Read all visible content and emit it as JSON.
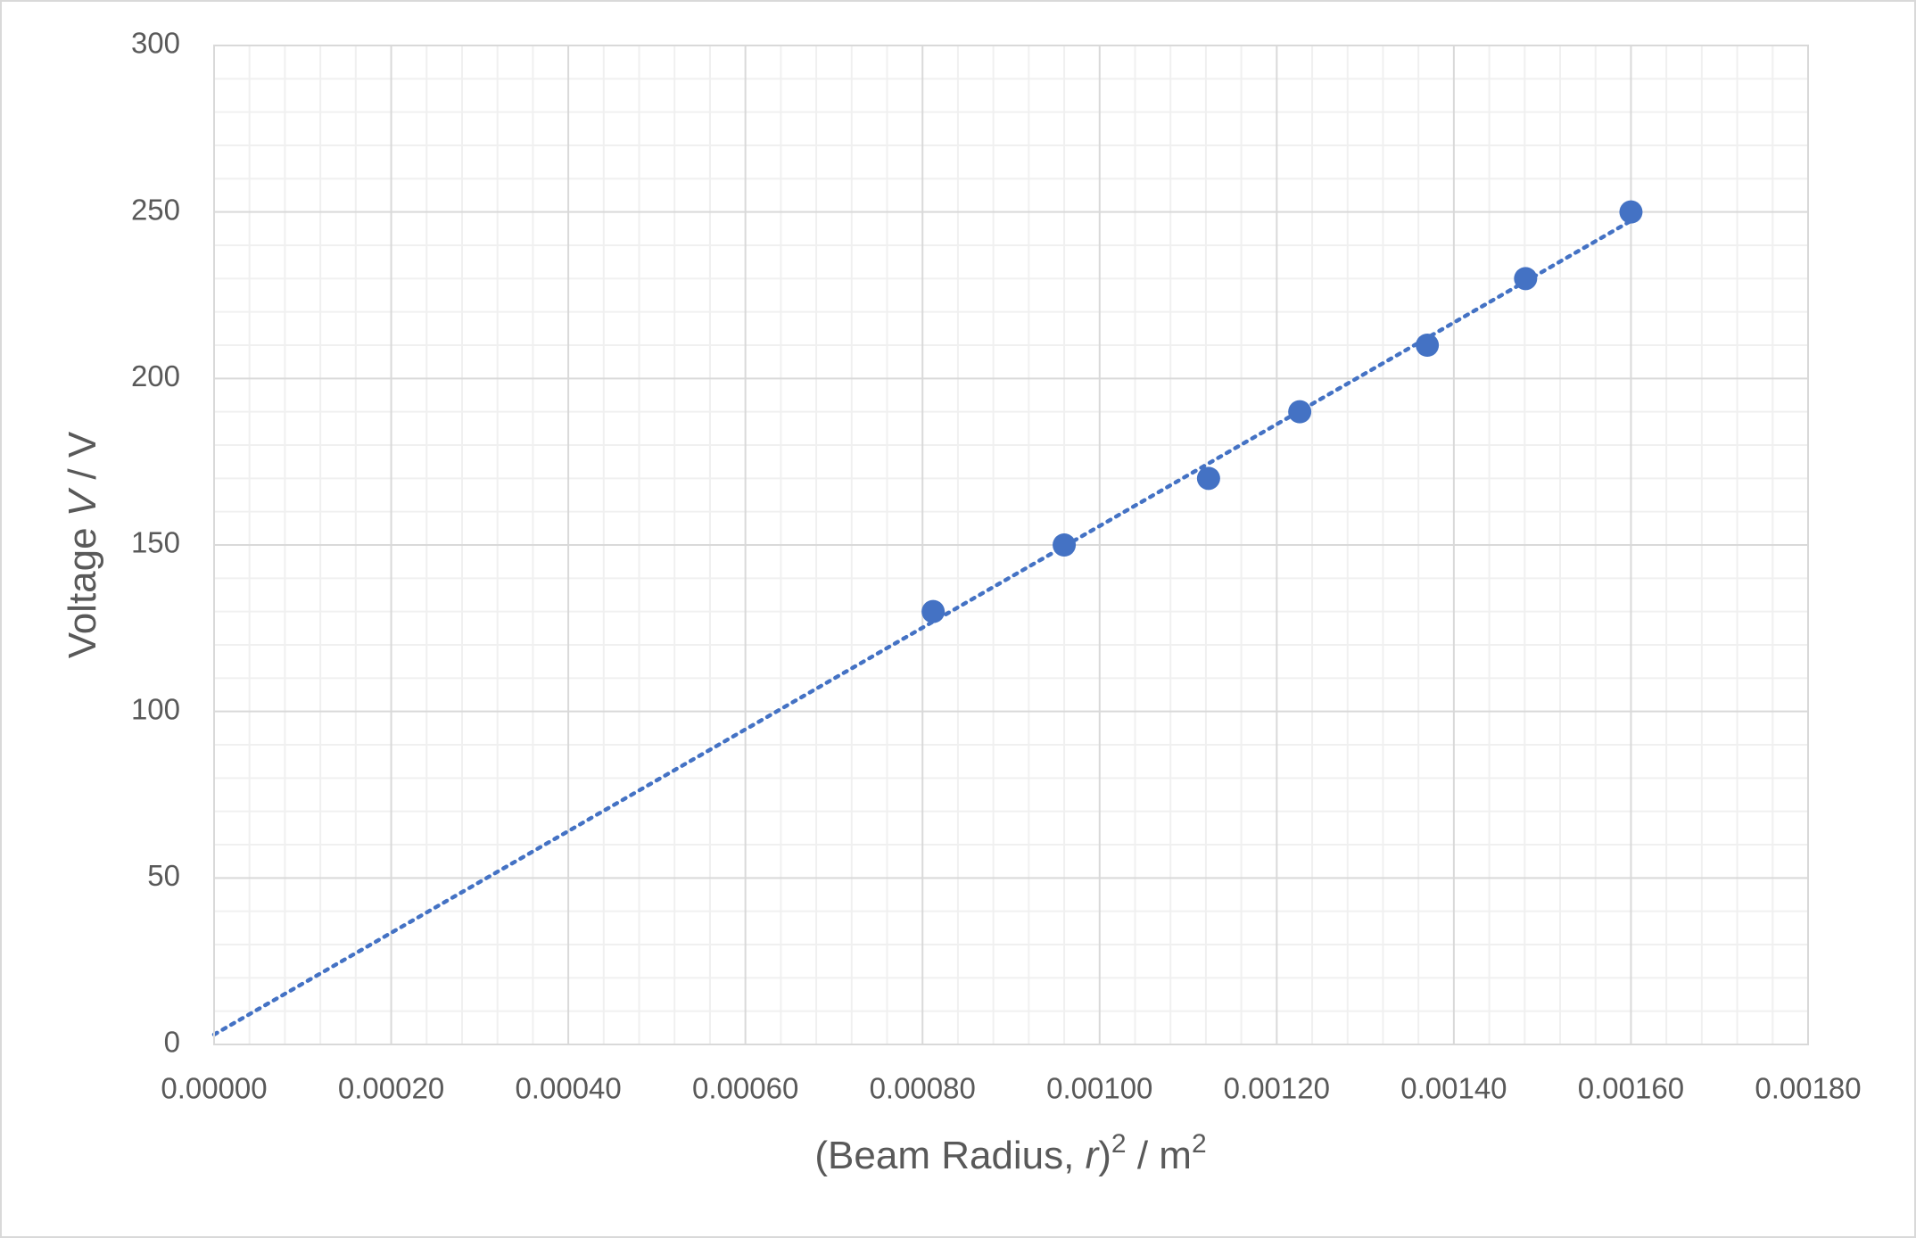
{
  "chart_data": {
    "type": "scatter",
    "x_label": [
      "(Beam Radius, ",
      "r",
      ")",
      "2",
      " / m",
      "2"
    ],
    "y_label": [
      "Voltage ",
      "V",
      " / V"
    ],
    "x": [
      0.000812,
      0.00096,
      0.001123,
      0.001226,
      0.00137,
      0.001481,
      0.0016
    ],
    "series": [
      {
        "color": "#4472c4",
        "values": [
          130,
          150,
          170,
          190,
          210,
          230,
          250
        ]
      }
    ],
    "trendline": "linear",
    "xlim": [
      0,
      0.0018
    ],
    "ylim": [
      0,
      300
    ],
    "xticks": [
      {
        "value": 0,
        "label": "0.00000"
      },
      {
        "value": 0.0002,
        "label": "0.00020"
      },
      {
        "value": 0.0004,
        "label": "0.00040"
      },
      {
        "value": 0.0006,
        "label": "0.00060"
      },
      {
        "value": 0.0008,
        "label": "0.00080"
      },
      {
        "value": 0.001,
        "label": "0.00100"
      },
      {
        "value": 0.0012,
        "label": "0.00120"
      },
      {
        "value": 0.0014,
        "label": "0.00140"
      },
      {
        "value": 0.0016,
        "label": "0.00160"
      },
      {
        "value": 0.0018,
        "label": "0.00180"
      }
    ],
    "yticks": [
      0,
      50,
      100,
      150,
      200,
      250,
      300
    ],
    "grid": true,
    "minor_divisions": 5
  }
}
